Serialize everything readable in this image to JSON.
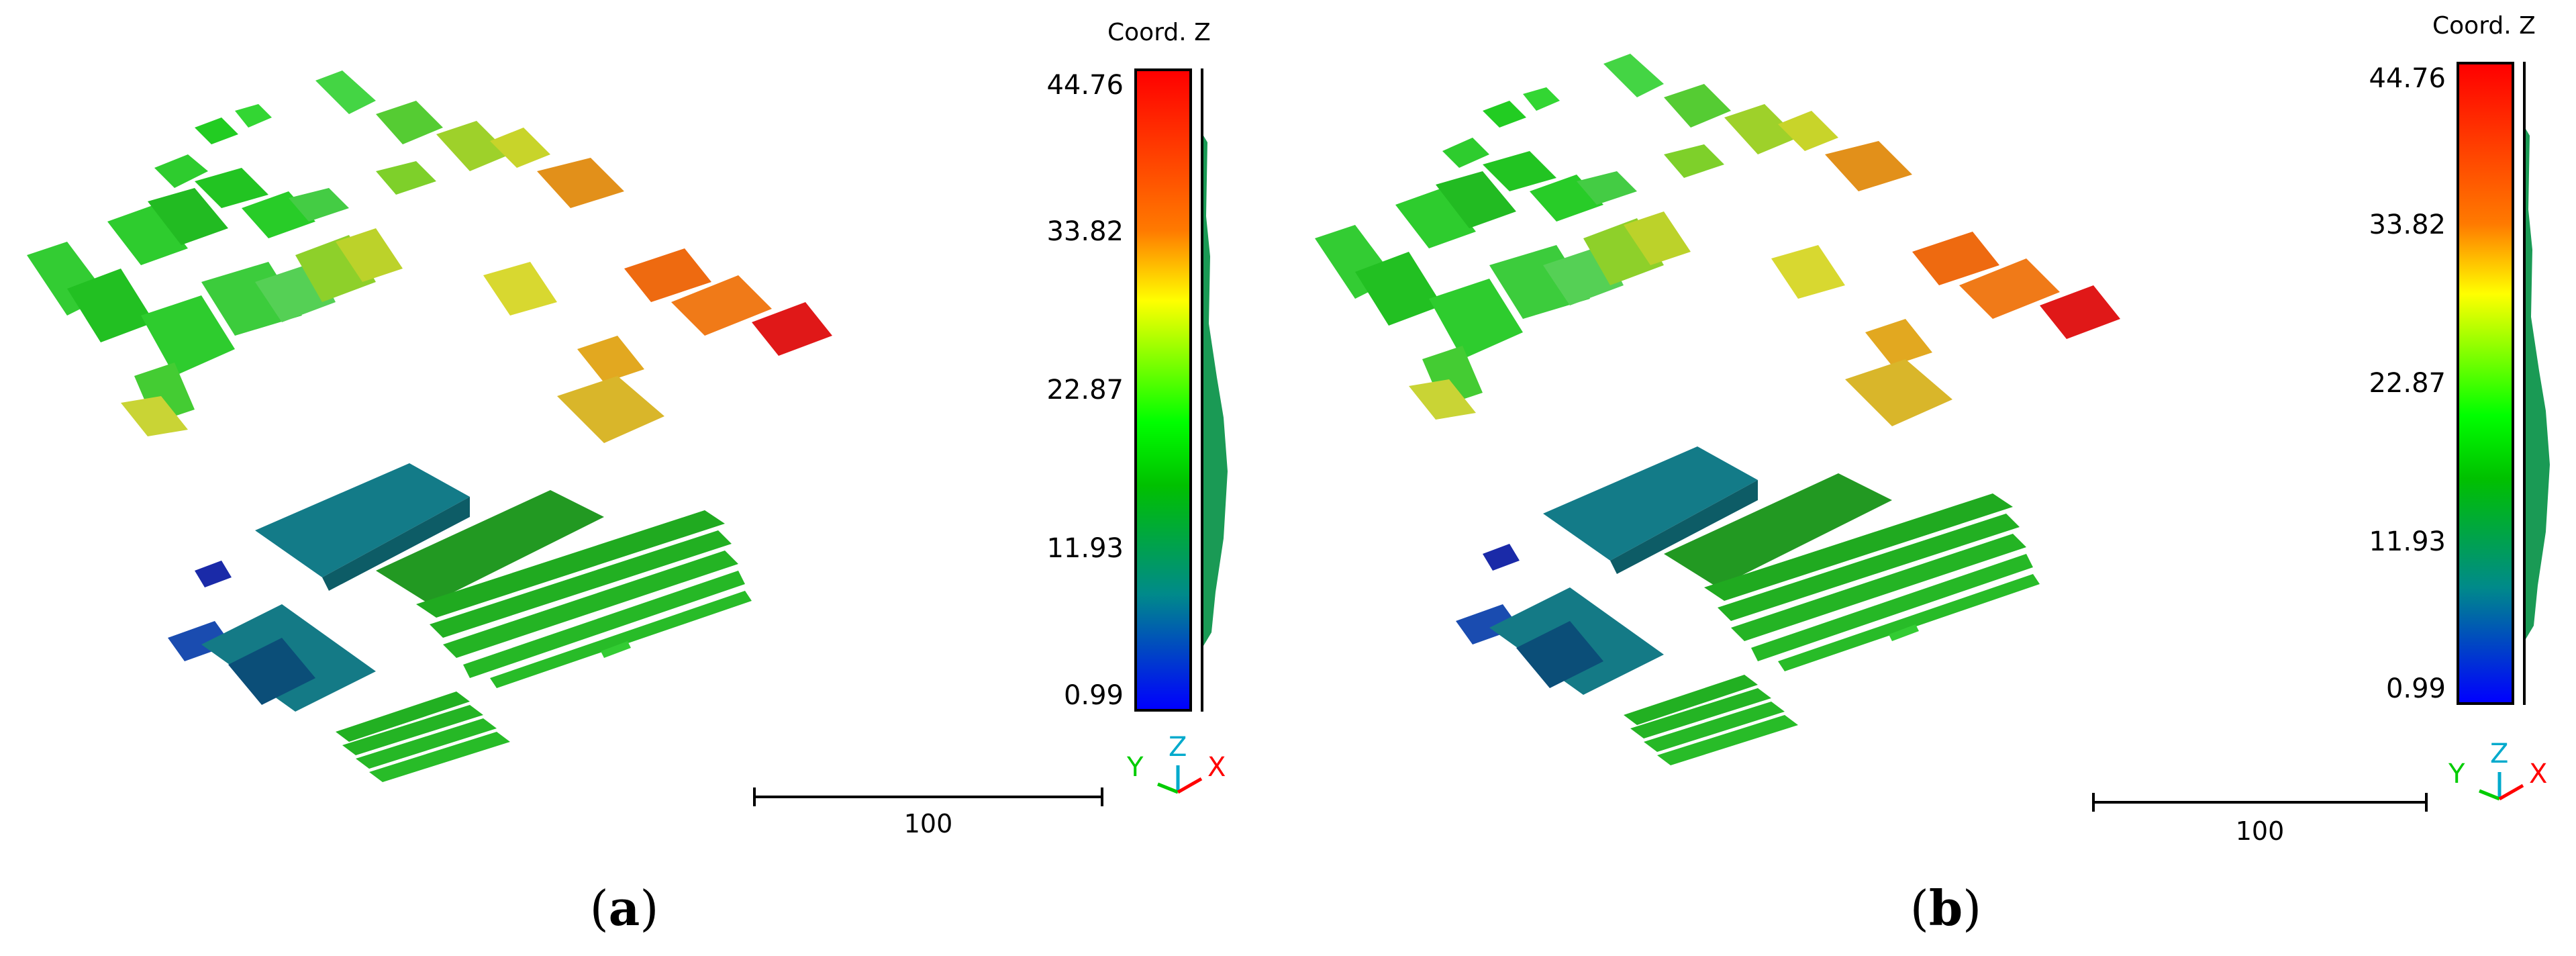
{
  "panels": [
    {
      "id": "a",
      "caption_open": "(",
      "caption_letter": "a",
      "caption_close": ")",
      "scalar_field": "Coord. Z",
      "ticks": [
        "44.76",
        "33.82",
        "22.87",
        "11.93",
        "0.99"
      ],
      "scale_label": "100",
      "axes": {
        "y": "Y",
        "z": "Z",
        "x": "X"
      }
    },
    {
      "id": "b",
      "caption_open": "(",
      "caption_letter": "b",
      "caption_close": ")",
      "scalar_field": "Coord. Z",
      "ticks": [
        "44.76",
        "33.82",
        "22.87",
        "11.93",
        "0.99"
      ],
      "scale_label": "100",
      "axes": {
        "y": "Y",
        "z": "Z",
        "x": "X"
      }
    }
  ],
  "colors": {
    "high": "#ff0000",
    "orange": "#ff8000",
    "yellow": "#e0e000",
    "green": "#22cc22",
    "teal": "#1a7f7f",
    "blue": "#0000ff",
    "axis_x": "#ff0000",
    "axis_y": "#00cc00",
    "axis_z": "#00aacc"
  }
}
